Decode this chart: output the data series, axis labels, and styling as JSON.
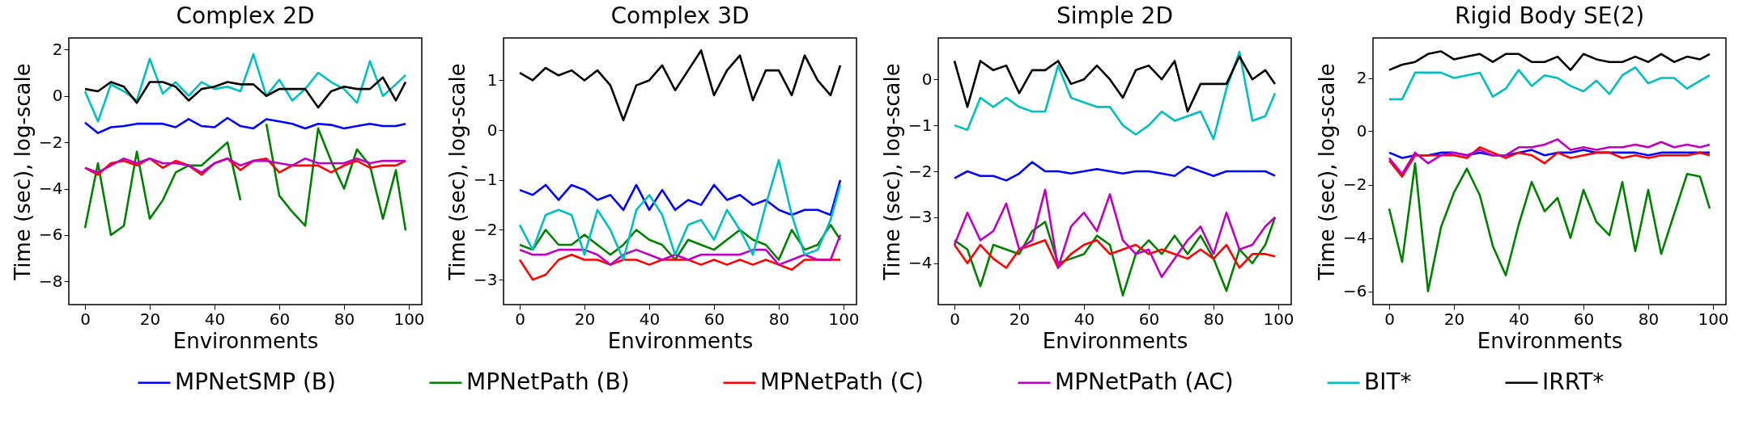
{
  "chart_data": [
    {
      "type": "line",
      "title": "Complex 2D",
      "xlabel": "Environments",
      "ylabel": "Time (sec), log-scale",
      "x": [
        0,
        4,
        8,
        12,
        16,
        20,
        24,
        28,
        32,
        36,
        40,
        44,
        48,
        52,
        56,
        60,
        64,
        68,
        72,
        76,
        80,
        84,
        88,
        92,
        96,
        99
      ],
      "xlim": [
        -5,
        104
      ],
      "xticks": [
        0,
        20,
        40,
        60,
        80,
        100
      ],
      "ylim": [
        -9,
        2.5
      ],
      "yticks": [
        -8,
        -6,
        -4,
        -2,
        0,
        2
      ],
      "grid": false,
      "legend": "bottom",
      "series": [
        {
          "name": "MPNetSMP (B)",
          "color": "#0000ff",
          "values": [
            -1.15,
            -1.6,
            -1.35,
            -1.3,
            -1.2,
            -1.2,
            -1.2,
            -1.35,
            -1.0,
            -1.3,
            -1.35,
            -0.95,
            -1.3,
            -1.4,
            -1.0,
            -1.1,
            -1.2,
            -1.4,
            -1.2,
            -1.25,
            -1.4,
            -1.3,
            -1.2,
            -1.3,
            -1.3,
            -1.2
          ]
        },
        {
          "name": "MPNetPath (B)",
          "color": "#008000",
          "values": [
            -5.7,
            -2.9,
            -6.0,
            -5.6,
            -2.4,
            -5.3,
            -4.5,
            -3.3,
            -3.0,
            -3.0,
            -2.5,
            -2.0,
            -4.5,
            null,
            -1.2,
            -4.3,
            -5.0,
            -5.6,
            -1.4,
            -2.8,
            -4.0,
            -2.3,
            -3.0,
            -5.3,
            -3.2,
            -5.8
          ]
        },
        {
          "name": "MPNetPath (C)",
          "color": "#ff0000",
          "values": [
            -3.1,
            -3.4,
            -2.9,
            -2.8,
            -3.0,
            -2.7,
            -3.1,
            -2.8,
            -3.0,
            -3.4,
            -2.9,
            -2.7,
            -3.2,
            -2.8,
            -2.7,
            -3.3,
            -3.0,
            -3.0,
            -3.0,
            -3.3,
            -3.0,
            -2.8,
            -3.1,
            -3.0,
            -3.0,
            -2.8
          ]
        },
        {
          "name": "MPNetPath (AC)",
          "color": "#bf00bf",
          "values": [
            -3.1,
            -3.3,
            -3.0,
            -2.7,
            -2.9,
            -2.7,
            -2.9,
            -2.9,
            -3.0,
            -3.3,
            -2.9,
            -2.7,
            -3.0,
            -2.8,
            -2.8,
            -2.9,
            -3.0,
            -2.7,
            -2.9,
            -2.9,
            -2.9,
            -2.7,
            -2.9,
            -2.8,
            -2.8,
            -2.8
          ]
        },
        {
          "name": "BIT*",
          "color": "#00bfbf",
          "values": [
            0.2,
            -1.1,
            0.5,
            0.2,
            -0.2,
            1.6,
            0.1,
            0.6,
            0.0,
            0.6,
            0.3,
            0.4,
            0.2,
            1.8,
            0.0,
            0.7,
            -0.2,
            0.3,
            1.0,
            0.6,
            0.3,
            -0.3,
            1.5,
            0.0,
            0.5,
            0.9
          ]
        },
        {
          "name": "IRRT*",
          "color": "#000000",
          "values": [
            0.3,
            0.2,
            0.6,
            0.4,
            -0.3,
            0.6,
            0.6,
            0.4,
            -0.2,
            0.3,
            0.4,
            0.6,
            0.5,
            0.5,
            0.0,
            0.3,
            0.3,
            0.3,
            -0.5,
            0.2,
            0.4,
            0.3,
            0.3,
            0.8,
            -0.2,
            0.6
          ]
        }
      ]
    },
    {
      "type": "line",
      "title": "Complex 3D",
      "xlabel": "Environments",
      "ylabel": "Time (sec), log-scale",
      "x": [
        0,
        4,
        8,
        12,
        16,
        20,
        24,
        28,
        32,
        36,
        40,
        44,
        48,
        52,
        56,
        60,
        64,
        68,
        72,
        76,
        80,
        84,
        88,
        92,
        96,
        99
      ],
      "xlim": [
        -5,
        104
      ],
      "xticks": [
        0,
        20,
        40,
        60,
        80,
        100
      ],
      "ylim": [
        -3.5,
        1.85
      ],
      "yticks": [
        -3,
        -2,
        -1,
        0,
        1
      ],
      "grid": false,
      "legend": "bottom",
      "series": [
        {
          "name": "MPNetSMP (B)",
          "color": "#0000ff",
          "values": [
            -1.2,
            -1.3,
            -1.1,
            -1.4,
            -1.1,
            -1.2,
            -1.4,
            -1.3,
            -1.6,
            -1.1,
            -1.6,
            -1.2,
            -1.6,
            -1.4,
            -1.5,
            -1.1,
            -1.4,
            -1.3,
            -1.5,
            -1.4,
            -1.6,
            -1.7,
            -1.6,
            -1.6,
            -1.7,
            -1.0
          ]
        },
        {
          "name": "MPNetPath (B)",
          "color": "#008000",
          "values": [
            -2.3,
            -2.4,
            -2.0,
            -2.3,
            -2.3,
            -2.1,
            -2.3,
            -2.5,
            -2.3,
            -2.0,
            -2.2,
            -2.3,
            -2.6,
            -2.2,
            -2.3,
            -2.4,
            -2.2,
            -2.0,
            -2.2,
            -2.3,
            -2.6,
            -2.0,
            -2.4,
            -2.3,
            -1.9,
            -2.2
          ]
        },
        {
          "name": "MPNetPath (C)",
          "color": "#ff0000",
          "values": [
            -2.6,
            -3.0,
            -2.9,
            -2.6,
            -2.5,
            -2.6,
            -2.6,
            -2.7,
            -2.6,
            -2.6,
            -2.7,
            -2.6,
            -2.6,
            -2.6,
            -2.7,
            -2.6,
            -2.7,
            -2.6,
            -2.7,
            -2.6,
            -2.7,
            -2.8,
            -2.6,
            -2.6,
            -2.6,
            -2.6
          ]
        },
        {
          "name": "MPNetPath (AC)",
          "color": "#bf00bf",
          "values": [
            -2.4,
            -2.5,
            -2.5,
            -2.4,
            -2.4,
            -2.4,
            -2.5,
            -2.7,
            -2.5,
            -2.4,
            -2.5,
            -2.6,
            -2.5,
            -2.6,
            -2.5,
            -2.5,
            -2.5,
            -2.5,
            -2.4,
            -2.4,
            -2.7,
            -2.6,
            -2.5,
            -2.6,
            -2.6,
            -2.1
          ]
        },
        {
          "name": "BIT*",
          "color": "#00bfbf",
          "values": [
            -1.9,
            -2.4,
            -1.7,
            -1.6,
            -1.7,
            -2.5,
            -1.6,
            -2.0,
            -2.6,
            -1.6,
            -1.3,
            -1.7,
            -2.5,
            -1.9,
            -1.8,
            -2.2,
            -1.6,
            -2.0,
            -2.5,
            -1.5,
            -0.6,
            -1.7,
            -2.5,
            -2.4,
            -1.8,
            -1.1
          ]
        },
        {
          "name": "IRRT*",
          "color": "#000000",
          "values": [
            1.15,
            1.0,
            1.25,
            1.1,
            1.2,
            1.0,
            1.2,
            0.9,
            0.2,
            0.9,
            1.0,
            1.3,
            0.8,
            1.2,
            1.6,
            0.7,
            1.2,
            1.5,
            0.6,
            1.2,
            1.2,
            0.7,
            1.5,
            1.0,
            0.7,
            1.3
          ]
        }
      ]
    },
    {
      "type": "line",
      "title": "Simple 2D",
      "xlabel": "Environments",
      "ylabel": "Time (sec), log-scale",
      "x": [
        0,
        4,
        8,
        12,
        16,
        20,
        24,
        28,
        32,
        36,
        40,
        44,
        48,
        52,
        56,
        60,
        64,
        68,
        72,
        76,
        80,
        84,
        88,
        92,
        96,
        99
      ],
      "xlim": [
        -5,
        104
      ],
      "xticks": [
        0,
        20,
        40,
        60,
        80,
        100
      ],
      "ylim": [
        -4.9,
        0.9
      ],
      "yticks": [
        -4,
        -3,
        -2,
        -1,
        0
      ],
      "grid": false,
      "legend": "bottom",
      "series": [
        {
          "name": "MPNetSMP (B)",
          "color": "#0000ff",
          "values": [
            -2.15,
            -2.0,
            -2.1,
            -2.1,
            -2.2,
            -2.05,
            -1.8,
            -2.0,
            -2.0,
            -2.05,
            -2.0,
            -1.95,
            -2.0,
            -2.05,
            -2.0,
            -2.0,
            -2.05,
            -2.1,
            -1.9,
            -2.0,
            -2.1,
            -2.0,
            -2.0,
            -2.0,
            -2.0,
            -2.1
          ]
        },
        {
          "name": "MPNetPath (B)",
          "color": "#008000",
          "values": [
            -3.5,
            -3.7,
            -4.5,
            -3.6,
            -3.7,
            -3.8,
            -3.3,
            -3.1,
            -4.0,
            -3.9,
            -3.8,
            -3.4,
            -3.6,
            -4.7,
            -3.8,
            -3.5,
            -3.8,
            -3.4,
            -3.8,
            -3.4,
            -3.9,
            -4.6,
            -3.7,
            -4.0,
            -3.6,
            -3.0
          ]
        },
        {
          "name": "MPNetPath (C)",
          "color": "#ff0000",
          "values": [
            -3.6,
            -4.0,
            -3.6,
            -3.9,
            -4.1,
            -3.7,
            -3.6,
            -3.5,
            -4.1,
            -3.8,
            -3.6,
            -3.5,
            -3.8,
            -3.7,
            -3.6,
            -3.8,
            -3.7,
            -3.8,
            -3.9,
            -3.7,
            -3.9,
            -3.6,
            -4.1,
            -3.8,
            -3.8,
            -3.85
          ]
        },
        {
          "name": "MPNetPath (AC)",
          "color": "#bf00bf",
          "values": [
            -3.6,
            -2.9,
            -3.5,
            -3.3,
            -2.7,
            -3.7,
            -3.5,
            -2.4,
            -4.1,
            -3.2,
            -2.9,
            -3.3,
            -2.5,
            -3.5,
            -3.8,
            -3.7,
            -4.3,
            -3.9,
            -3.5,
            -3.2,
            -3.8,
            -2.9,
            -3.7,
            -3.6,
            -3.2,
            -3.0
          ]
        },
        {
          "name": "BIT*",
          "color": "#00bfbf",
          "values": [
            -1.0,
            -1.1,
            -0.4,
            -0.6,
            -0.4,
            -0.6,
            -0.7,
            -0.7,
            0.3,
            -0.4,
            -0.5,
            -0.6,
            -0.6,
            -1.0,
            -1.2,
            -1.0,
            -0.7,
            -0.9,
            -0.8,
            -0.7,
            -1.3,
            -0.2,
            0.6,
            -0.9,
            -0.8,
            -0.3
          ]
        },
        {
          "name": "IRRT*",
          "color": "#000000",
          "values": [
            0.4,
            -0.6,
            0.4,
            0.2,
            0.3,
            -0.3,
            0.2,
            0.2,
            0.4,
            -0.1,
            0.0,
            0.3,
            0.0,
            -0.4,
            0.2,
            0.3,
            0.0,
            0.4,
            -0.7,
            -0.1,
            -0.1,
            -0.1,
            0.5,
            0.0,
            0.2,
            -0.1
          ]
        }
      ]
    },
    {
      "type": "line",
      "title": "Rigid Body SE(2)",
      "xlabel": "Environments",
      "ylabel": "Time (sec), log-scale",
      "x": [
        0,
        4,
        8,
        12,
        16,
        20,
        24,
        28,
        32,
        36,
        40,
        44,
        48,
        52,
        56,
        60,
        64,
        68,
        72,
        76,
        80,
        84,
        88,
        92,
        96,
        99
      ],
      "xlim": [
        -5,
        104
      ],
      "xticks": [
        0,
        20,
        40,
        60,
        80,
        100
      ],
      "ylim": [
        -6.5,
        3.5
      ],
      "yticks": [
        -6,
        -4,
        -2,
        0,
        2
      ],
      "grid": false,
      "legend": "bottom",
      "series": [
        {
          "name": "MPNetSMP (B)",
          "color": "#0000ff",
          "values": [
            -0.8,
            -1.0,
            -0.9,
            -0.9,
            -0.8,
            -0.8,
            -0.9,
            -0.8,
            -0.9,
            -0.9,
            -0.8,
            -0.7,
            -0.9,
            -0.8,
            -0.8,
            -0.7,
            -0.8,
            -0.8,
            -0.8,
            -0.8,
            -0.9,
            -0.8,
            -0.8,
            -0.8,
            -0.8,
            -0.8
          ]
        },
        {
          "name": "MPNetPath (B)",
          "color": "#008000",
          "values": [
            -2.9,
            -4.9,
            -1.2,
            -6.0,
            -3.6,
            -2.3,
            -1.4,
            -2.4,
            -4.3,
            -5.4,
            -3.5,
            -1.9,
            -3.0,
            -2.5,
            -4.0,
            -2.2,
            -3.4,
            -3.9,
            -1.9,
            -4.5,
            -2.2,
            -4.6,
            -3.1,
            -1.6,
            -1.7,
            -2.9
          ]
        },
        {
          "name": "MPNetPath (C)",
          "color": "#ff0000",
          "values": [
            -1.1,
            -1.7,
            -0.9,
            -0.9,
            -0.9,
            -0.9,
            -1.0,
            -0.6,
            -0.8,
            -1.0,
            -0.8,
            -0.9,
            -1.2,
            -0.8,
            -1.0,
            -0.9,
            -0.8,
            -0.8,
            -1.0,
            -0.9,
            -1.0,
            -0.9,
            -0.9,
            -0.9,
            -0.8,
            -0.9
          ]
        },
        {
          "name": "MPNetPath (AC)",
          "color": "#bf00bf",
          "values": [
            -1.0,
            -1.6,
            -0.8,
            -1.2,
            -0.9,
            -0.8,
            -0.9,
            -0.7,
            -0.9,
            -0.9,
            -0.6,
            -0.6,
            -0.5,
            -0.3,
            -0.7,
            -0.6,
            -0.7,
            -0.6,
            -0.6,
            -0.5,
            -0.6,
            -0.4,
            -0.6,
            -0.5,
            -0.6,
            -0.5
          ]
        },
        {
          "name": "BIT*",
          "color": "#00bfbf",
          "values": [
            1.2,
            1.2,
            2.2,
            2.2,
            2.2,
            2.0,
            2.1,
            2.2,
            1.3,
            1.6,
            2.3,
            1.7,
            2.1,
            2.0,
            1.7,
            1.5,
            1.9,
            1.4,
            2.1,
            2.4,
            1.8,
            2.0,
            2.0,
            1.6,
            1.9,
            2.1
          ]
        },
        {
          "name": "IRRT*",
          "color": "#000000",
          "values": [
            2.3,
            2.5,
            2.6,
            2.9,
            3.0,
            2.7,
            2.8,
            2.9,
            2.6,
            2.9,
            2.9,
            2.6,
            2.6,
            2.8,
            2.3,
            2.9,
            2.7,
            2.6,
            2.6,
            2.8,
            2.6,
            2.9,
            2.6,
            2.8,
            2.7,
            2.9
          ]
        }
      ]
    }
  ]
}
